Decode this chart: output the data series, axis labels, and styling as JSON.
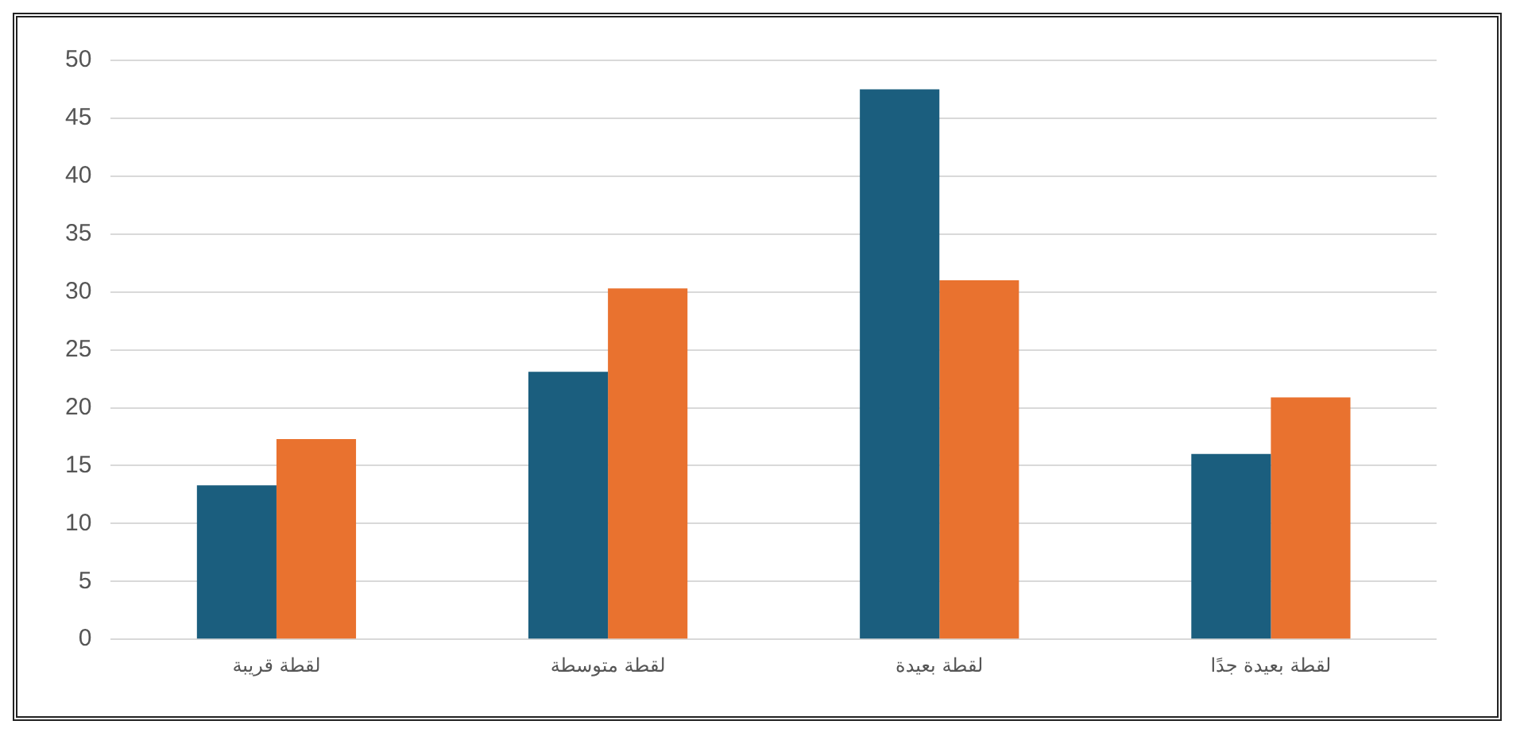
{
  "chart_data": {
    "type": "bar",
    "categories": [
      "لقطة قريبة",
      "لقطة متوسطة",
      "لقطة بعيدة",
      "لقطة بعيدة جدًا"
    ],
    "series": [
      {
        "color": "#1b5e7e",
        "values": [
          13.3,
          23.1,
          47.5,
          16.0
        ]
      },
      {
        "color": "#e9722f",
        "values": [
          17.3,
          30.3,
          31.0,
          20.9
        ]
      }
    ],
    "ylim": [
      0,
      50
    ],
    "yticks": [
      0,
      5,
      10,
      15,
      20,
      25,
      30,
      35,
      40,
      45,
      50
    ],
    "grid": "y",
    "legend": false
  }
}
